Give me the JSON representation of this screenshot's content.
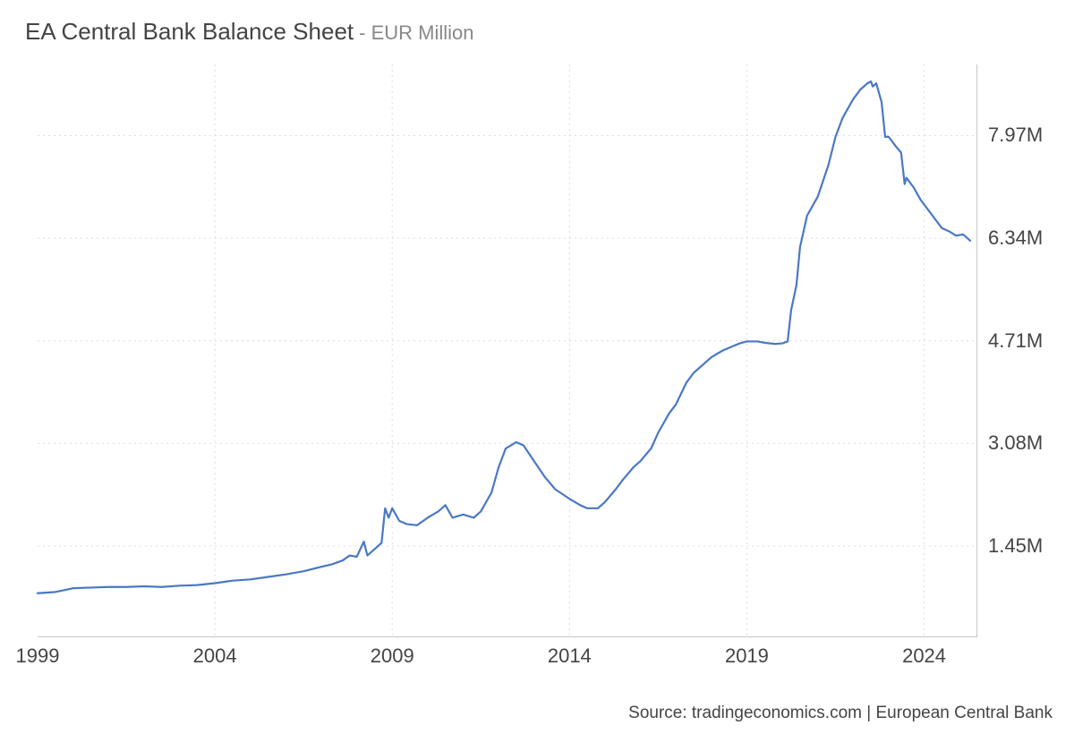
{
  "title": {
    "main": "EA Central Bank Balance Sheet",
    "sub": "- EUR Million"
  },
  "source": "Source: tradingeconomics.com | European Central Bank",
  "chart": {
    "type": "line",
    "background_color": "#ffffff",
    "grid_color": "#dcdcdc",
    "axis_color": "#c7c7c7",
    "line_color": "#4a78c4",
    "line_width": 2.2,
    "title_fontsize": 26,
    "subtitle_fontsize": 22,
    "label_fontsize": 22,
    "x_axis": {
      "min": 1999,
      "max": 2025.5,
      "tick_values": [
        1999,
        2004,
        2009,
        2014,
        2019,
        2024
      ],
      "tick_labels": [
        "1999",
        "2004",
        "2009",
        "2014",
        "2019",
        "2024"
      ]
    },
    "y_axis": {
      "min": 0,
      "max": 9.1,
      "tick_values": [
        1.45,
        3.08,
        4.71,
        6.34,
        7.97
      ],
      "tick_labels": [
        "1.45M",
        "3.08M",
        "4.71M",
        "6.34M",
        "7.97M"
      ]
    },
    "series": [
      {
        "x": 1999.0,
        "y": 0.7
      },
      {
        "x": 1999.5,
        "y": 0.72
      },
      {
        "x": 2000.0,
        "y": 0.78
      },
      {
        "x": 2000.5,
        "y": 0.79
      },
      {
        "x": 2001.0,
        "y": 0.8
      },
      {
        "x": 2001.5,
        "y": 0.8
      },
      {
        "x": 2002.0,
        "y": 0.81
      },
      {
        "x": 2002.5,
        "y": 0.8
      },
      {
        "x": 2003.0,
        "y": 0.82
      },
      {
        "x": 2003.5,
        "y": 0.83
      },
      {
        "x": 2004.0,
        "y": 0.86
      },
      {
        "x": 2004.5,
        "y": 0.9
      },
      {
        "x": 2005.0,
        "y": 0.92
      },
      {
        "x": 2005.5,
        "y": 0.96
      },
      {
        "x": 2006.0,
        "y": 1.0
      },
      {
        "x": 2006.5,
        "y": 1.05
      },
      {
        "x": 2007.0,
        "y": 1.12
      },
      {
        "x": 2007.3,
        "y": 1.16
      },
      {
        "x": 2007.6,
        "y": 1.22
      },
      {
        "x": 2007.8,
        "y": 1.3
      },
      {
        "x": 2008.0,
        "y": 1.28
      },
      {
        "x": 2008.2,
        "y": 1.52
      },
      {
        "x": 2008.3,
        "y": 1.3
      },
      {
        "x": 2008.5,
        "y": 1.4
      },
      {
        "x": 2008.7,
        "y": 1.5
      },
      {
        "x": 2008.8,
        "y": 2.05
      },
      {
        "x": 2008.9,
        "y": 1.9
      },
      {
        "x": 2009.0,
        "y": 2.05
      },
      {
        "x": 2009.2,
        "y": 1.85
      },
      {
        "x": 2009.4,
        "y": 1.8
      },
      {
        "x": 2009.7,
        "y": 1.78
      },
      {
        "x": 2010.0,
        "y": 1.9
      },
      {
        "x": 2010.3,
        "y": 2.0
      },
      {
        "x": 2010.5,
        "y": 2.1
      },
      {
        "x": 2010.7,
        "y": 1.9
      },
      {
        "x": 2011.0,
        "y": 1.95
      },
      {
        "x": 2011.3,
        "y": 1.9
      },
      {
        "x": 2011.5,
        "y": 2.0
      },
      {
        "x": 2011.8,
        "y": 2.3
      },
      {
        "x": 2012.0,
        "y": 2.7
      },
      {
        "x": 2012.2,
        "y": 3.0
      },
      {
        "x": 2012.5,
        "y": 3.1
      },
      {
        "x": 2012.7,
        "y": 3.05
      },
      {
        "x": 2013.0,
        "y": 2.8
      },
      {
        "x": 2013.3,
        "y": 2.55
      },
      {
        "x": 2013.6,
        "y": 2.35
      },
      {
        "x": 2014.0,
        "y": 2.2
      },
      {
        "x": 2014.3,
        "y": 2.1
      },
      {
        "x": 2014.5,
        "y": 2.05
      },
      {
        "x": 2014.8,
        "y": 2.05
      },
      {
        "x": 2015.0,
        "y": 2.15
      },
      {
        "x": 2015.3,
        "y": 2.35
      },
      {
        "x": 2015.5,
        "y": 2.5
      },
      {
        "x": 2015.8,
        "y": 2.7
      },
      {
        "x": 2016.0,
        "y": 2.8
      },
      {
        "x": 2016.3,
        "y": 3.0
      },
      {
        "x": 2016.5,
        "y": 3.25
      },
      {
        "x": 2016.8,
        "y": 3.55
      },
      {
        "x": 2017.0,
        "y": 3.7
      },
      {
        "x": 2017.3,
        "y": 4.05
      },
      {
        "x": 2017.5,
        "y": 4.2
      },
      {
        "x": 2017.8,
        "y": 4.35
      },
      {
        "x": 2018.0,
        "y": 4.45
      },
      {
        "x": 2018.3,
        "y": 4.55
      },
      {
        "x": 2018.5,
        "y": 4.6
      },
      {
        "x": 2018.8,
        "y": 4.67
      },
      {
        "x": 2019.0,
        "y": 4.7
      },
      {
        "x": 2019.3,
        "y": 4.7
      },
      {
        "x": 2019.5,
        "y": 4.68
      },
      {
        "x": 2019.8,
        "y": 4.66
      },
      {
        "x": 2020.0,
        "y": 4.67
      },
      {
        "x": 2020.15,
        "y": 4.7
      },
      {
        "x": 2020.25,
        "y": 5.2
      },
      {
        "x": 2020.4,
        "y": 5.6
      },
      {
        "x": 2020.5,
        "y": 6.2
      },
      {
        "x": 2020.7,
        "y": 6.7
      },
      {
        "x": 2021.0,
        "y": 7.0
      },
      {
        "x": 2021.3,
        "y": 7.5
      },
      {
        "x": 2021.5,
        "y": 7.95
      },
      {
        "x": 2021.7,
        "y": 8.25
      },
      {
        "x": 2022.0,
        "y": 8.55
      },
      {
        "x": 2022.2,
        "y": 8.7
      },
      {
        "x": 2022.4,
        "y": 8.8
      },
      {
        "x": 2022.5,
        "y": 8.83
      },
      {
        "x": 2022.55,
        "y": 8.75
      },
      {
        "x": 2022.65,
        "y": 8.8
      },
      {
        "x": 2022.8,
        "y": 8.5
      },
      {
        "x": 2022.9,
        "y": 7.95
      },
      {
        "x": 2023.0,
        "y": 7.95
      },
      {
        "x": 2023.2,
        "y": 7.8
      },
      {
        "x": 2023.35,
        "y": 7.7
      },
      {
        "x": 2023.45,
        "y": 7.2
      },
      {
        "x": 2023.5,
        "y": 7.3
      },
      {
        "x": 2023.7,
        "y": 7.15
      },
      {
        "x": 2023.9,
        "y": 6.95
      },
      {
        "x": 2024.1,
        "y": 6.8
      },
      {
        "x": 2024.3,
        "y": 6.65
      },
      {
        "x": 2024.5,
        "y": 6.5
      },
      {
        "x": 2024.7,
        "y": 6.45
      },
      {
        "x": 2024.9,
        "y": 6.38
      },
      {
        "x": 2025.1,
        "y": 6.4
      },
      {
        "x": 2025.3,
        "y": 6.3
      }
    ]
  }
}
